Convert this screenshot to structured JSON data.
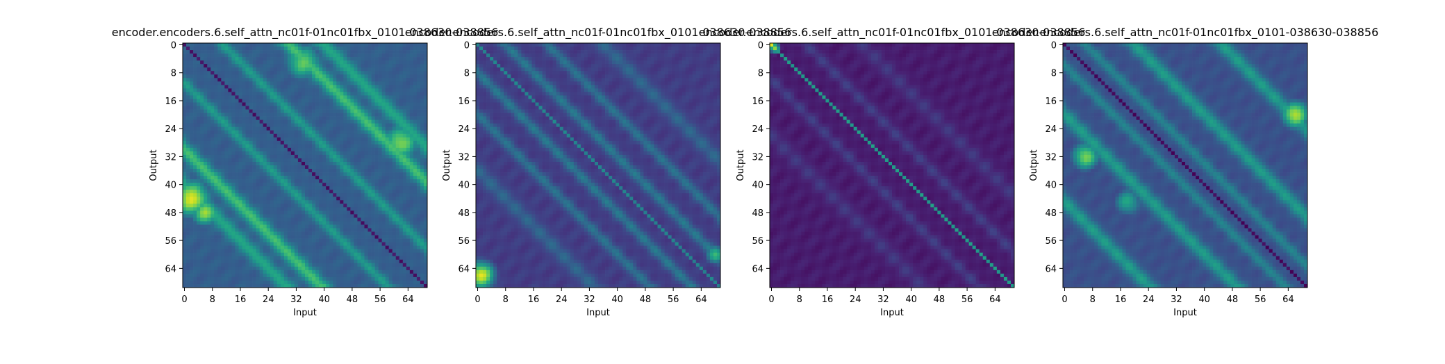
{
  "chart_data": [
    {
      "type": "heatmap",
      "title": "encoder.encoders.6.self_attn_nc01f-01nc01fbx_0101-038630-038856",
      "xlabel": "Input",
      "ylabel": "Output",
      "size": 70,
      "xticks": [
        0,
        8,
        16,
        24,
        32,
        40,
        48,
        56,
        64
      ],
      "yticks": [
        0,
        8,
        16,
        24,
        32,
        40,
        48,
        56,
        64
      ],
      "colormap": "viridis",
      "value_range": [
        0,
        1
      ],
      "pattern": {
        "main_diagonal": 0.05,
        "base": 0.3,
        "off_diagonal_bands": [
          {
            "offset": 11,
            "strength": 0.25,
            "width": 1.5
          },
          {
            "offset": -11,
            "strength": 0.25,
            "width": 1.5
          },
          {
            "offset": 30,
            "strength": 0.4,
            "width": 2.0
          },
          {
            "offset": -30,
            "strength": 0.4,
            "width": 2.0
          },
          {
            "offset": 40,
            "strength": 0.3,
            "width": 2.0
          },
          {
            "offset": -40,
            "strength": 0.3,
            "width": 2.0
          }
        ],
        "hot_spots": [
          {
            "row": 44,
            "col": 2,
            "value": 0.95,
            "radius": 4
          },
          {
            "row": 48,
            "col": 6,
            "value": 0.85,
            "radius": 3
          },
          {
            "row": 28,
            "col": 62,
            "value": 0.8,
            "radius": 4
          },
          {
            "row": 5,
            "col": 34,
            "value": 0.75,
            "radius": 4
          }
        ]
      }
    },
    {
      "type": "heatmap",
      "title": "encoder.encoders.6.self_attn_nc01f-01nc01fbx_0101-038630-038856",
      "xlabel": "Input",
      "ylabel": "Output",
      "size": 70,
      "xticks": [
        0,
        8,
        16,
        24,
        32,
        40,
        48,
        56,
        64
      ],
      "yticks": [
        0,
        8,
        16,
        24,
        32,
        40,
        48,
        56,
        64
      ],
      "colormap": "viridis",
      "value_range": [
        0,
        1
      ],
      "pattern": {
        "main_diagonal": 0.45,
        "base": 0.18,
        "off_diagonal_bands": [
          {
            "offset": 8,
            "strength": 0.22,
            "width": 1.5
          },
          {
            "offset": -8,
            "strength": 0.22,
            "width": 1.5
          },
          {
            "offset": 20,
            "strength": 0.2,
            "width": 1.5
          },
          {
            "offset": -20,
            "strength": 0.2,
            "width": 1.5
          },
          {
            "offset": 36,
            "strength": 0.15,
            "width": 2.0
          },
          {
            "offset": -36,
            "strength": 0.15,
            "width": 2.0
          }
        ],
        "hot_spots": [
          {
            "row": 66,
            "col": 1,
            "value": 0.95,
            "radius": 3
          },
          {
            "row": 60,
            "col": 68,
            "value": 0.7,
            "radius": 2
          }
        ]
      }
    },
    {
      "type": "heatmap",
      "title": "encoder.encoders.6.self_attn_nc01f-01nc01fbx_0101-038630-038856",
      "xlabel": "Input",
      "ylabel": "Output",
      "size": 70,
      "xticks": [
        0,
        8,
        16,
        24,
        32,
        40,
        48,
        56,
        64
      ],
      "yticks": [
        0,
        8,
        16,
        24,
        32,
        40,
        48,
        56,
        64
      ],
      "colormap": "viridis",
      "value_range": [
        0,
        1
      ],
      "pattern": {
        "main_diagonal": 0.55,
        "base": 0.08,
        "off_diagonal_bands": [
          {
            "offset": 10,
            "strength": 0.1,
            "width": 1.5
          },
          {
            "offset": -10,
            "strength": 0.1,
            "width": 1.5
          },
          {
            "offset": 26,
            "strength": 0.08,
            "width": 2.0
          },
          {
            "offset": -26,
            "strength": 0.08,
            "width": 2.0
          }
        ],
        "hot_spots": [
          {
            "row": 0,
            "col": 0,
            "value": 0.95,
            "radius": 1
          },
          {
            "row": 1,
            "col": 1,
            "value": 0.8,
            "radius": 1
          }
        ]
      }
    },
    {
      "type": "heatmap",
      "title": "encoder.encoders.6.self_attn_nc01f-01nc01fbx_0101-038630-038856",
      "xlabel": "Input",
      "ylabel": "Output",
      "size": 70,
      "xticks": [
        0,
        8,
        16,
        24,
        32,
        40,
        48,
        56,
        64
      ],
      "yticks": [
        0,
        8,
        16,
        24,
        32,
        40,
        48,
        56,
        64
      ],
      "colormap": "viridis",
      "value_range": [
        0,
        1
      ],
      "pattern": {
        "main_diagonal": 0.02,
        "base": 0.25,
        "off_diagonal_bands": [
          {
            "offset": 6,
            "strength": 0.2,
            "width": 1.5
          },
          {
            "offset": -6,
            "strength": 0.2,
            "width": 1.5
          },
          {
            "offset": 20,
            "strength": 0.3,
            "width": 2.0
          },
          {
            "offset": -20,
            "strength": 0.3,
            "width": 2.0
          },
          {
            "offset": 45,
            "strength": 0.3,
            "width": 2.0
          },
          {
            "offset": -45,
            "strength": 0.3,
            "width": 2.0
          }
        ],
        "hot_spots": [
          {
            "row": 20,
            "col": 66,
            "value": 0.9,
            "radius": 3
          },
          {
            "row": 32,
            "col": 6,
            "value": 0.8,
            "radius": 3
          },
          {
            "row": 45,
            "col": 18,
            "value": 0.6,
            "radius": 3
          }
        ]
      }
    }
  ]
}
